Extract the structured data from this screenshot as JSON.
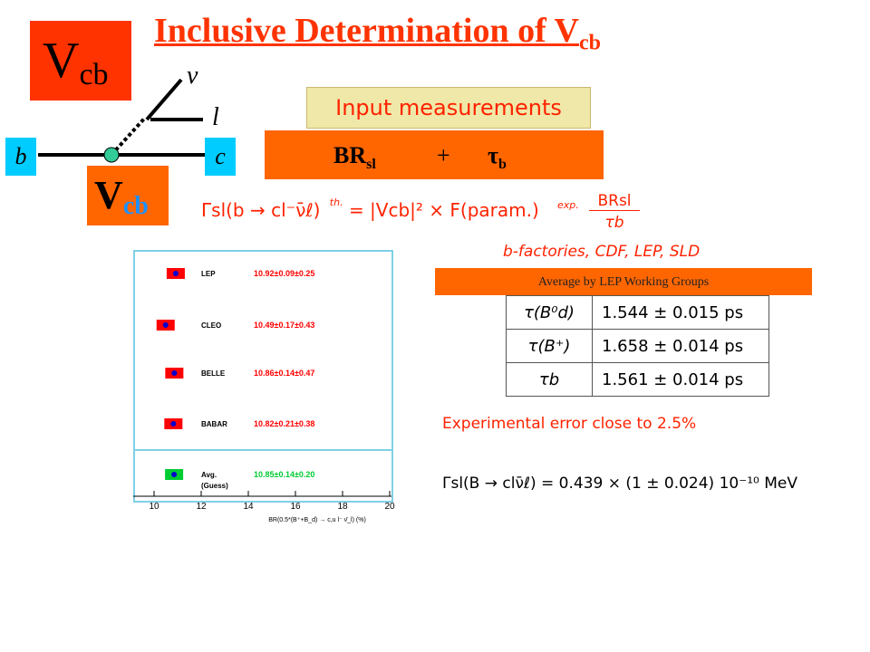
{
  "title": {
    "main": "Inclusive Determination of V",
    "sub": "cb"
  },
  "vcb_box": {
    "v": "V",
    "sub": "cb"
  },
  "vcb_box2": {
    "v": "V",
    "sub": "cb"
  },
  "diagram": {
    "b": "b",
    "c": "c",
    "nu": "ν",
    "l": "l"
  },
  "input_label": "Input measurements",
  "br_box": {
    "br": "BR",
    "br_sub": "sl",
    "plus": "+",
    "tau": "τ",
    "tau_sub": "b"
  },
  "gamma_formula": {
    "lhs": "Γsl(b → cl⁻ν̄ℓ)",
    "th": "th.",
    "mid": "= |Vcb|² × F(param.)",
    "exp": "exp.",
    "rhs_num": "BRsl",
    "rhs_den": "τb"
  },
  "sources": "b-factories, CDF, LEP, SLD",
  "average_label": "Average by LEP Working Groups",
  "tau_table": [
    {
      "quantity": "τ(B⁰d)",
      "value": "1.544 ± 0.015 ps"
    },
    {
      "quantity": "τ(B⁺)",
      "value": "1.658 ± 0.014 ps"
    },
    {
      "quantity": "τb",
      "value": "1.561 ± 0.014 ps"
    }
  ],
  "error_note": "Experimental error close to 2.5%",
  "final_formula": "Γsl(B → clν̄ℓ) = 0.439 × (1 ± 0.024) 10⁻¹⁰ MeV",
  "chart_data": {
    "type": "scatter",
    "xlabel": "BR(0.5*(B⁺+B_d) → c,u l⁻ ν̄_l) (%)",
    "xlim": [
      10,
      20
    ],
    "xticks": [
      "10",
      "12",
      "14",
      "16",
      "18",
      "20"
    ],
    "series": [
      {
        "name": "LEP",
        "value": 10.92,
        "label": "10.92±0.09±0.25",
        "color": "#ff0000"
      },
      {
        "name": "CLEO",
        "value": 10.49,
        "label": "10.49±0.17±0.43",
        "color": "#ff0000"
      },
      {
        "name": "BELLE",
        "value": 10.86,
        "label": "10.86±0.14±0.47",
        "color": "#ff0000"
      },
      {
        "name": "BABAR",
        "value": 10.82,
        "label": "10.82±0.21±0.38",
        "color": "#ff0000"
      },
      {
        "name": "Avg.\n(Guess)",
        "value": 10.85,
        "label": "10.85±0.14±0.20",
        "color": "#00cc33"
      }
    ]
  }
}
